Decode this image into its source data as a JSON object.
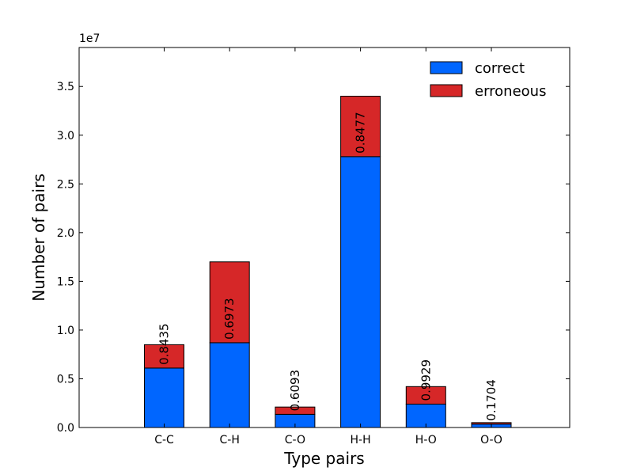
{
  "chart_data": {
    "type": "bar",
    "stacked": true,
    "title": "",
    "xlabel": "Type pairs",
    "ylabel": "Number of pairs",
    "y_multiplier_label": "1e7",
    "ylim": [
      0,
      3.9
    ],
    "y_ticks": [
      "0.0",
      "0.5",
      "1.0",
      "1.5",
      "2.0",
      "2.5",
      "3.0",
      "3.5"
    ],
    "categories": [
      "C-C",
      "C-H",
      "C-O",
      "H-H",
      "H-O",
      "O-O"
    ],
    "series": [
      {
        "name": "correct",
        "color": "#0066ff",
        "values": [
          0.61,
          0.87,
          0.135,
          2.78,
          0.24,
          0.035
        ]
      },
      {
        "name": "erroneous",
        "color": "#d62728",
        "values": [
          0.24,
          0.83,
          0.075,
          0.62,
          0.18,
          0.015
        ]
      }
    ],
    "bar_labels": [
      "0.8435",
      "0.6973",
      "0.6093",
      "0.8477",
      "0.9929",
      "0.1704"
    ],
    "legend": {
      "position": "top-right"
    }
  }
}
